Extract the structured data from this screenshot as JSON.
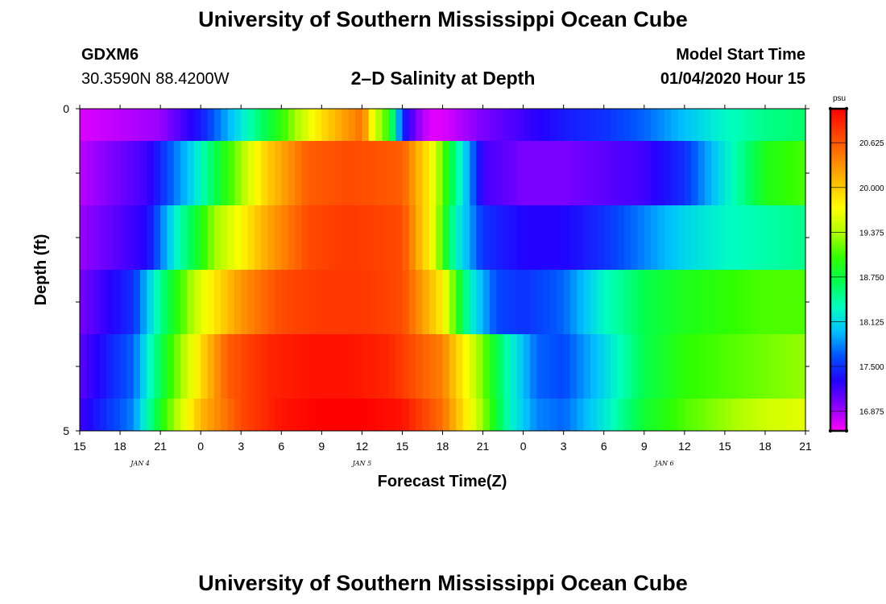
{
  "header": {
    "title": "University of Southern Mississippi Ocean Cube",
    "station_id": "GDXM6",
    "coordinates": "30.3590N 88.4200W",
    "plot_title": "2–D Salinity at Depth",
    "model_start_label": "Model Start Time",
    "model_start_value": "01/04/2020 Hour 15"
  },
  "footer": {
    "title": "University of Southern Mississippi Ocean Cube"
  },
  "chart_data": {
    "type": "heatmap",
    "title": "2–D Salinity at Depth",
    "xlabel": "Forecast Time(Z)",
    "ylabel": "Depth (ft)",
    "x_tick_labels": [
      "15",
      "18",
      "21",
      "0",
      "3",
      "6",
      "9",
      "12",
      "15",
      "18",
      "21",
      "0",
      "3",
      "6",
      "9",
      "12",
      "15",
      "18",
      "21"
    ],
    "x_day_labels": [
      {
        "label": "JAN 4",
        "tick_index": 1.5
      },
      {
        "label": "JAN 5",
        "tick_index": 7
      },
      {
        "label": "JAN 6",
        "tick_index": 14.5
      }
    ],
    "x_range_hours": [
      0,
      54
    ],
    "y_tick_labels": [
      {
        "value": 0,
        "label": "0"
      },
      {
        "value": 1,
        "label": ""
      },
      {
        "value": 2,
        "label": ""
      },
      {
        "value": 3,
        "label": ""
      },
      {
        "value": 4,
        "label": ""
      },
      {
        "value": 5,
        "label": "5"
      }
    ],
    "ylim": [
      0,
      5
    ],
    "row_depths": [
      0,
      1,
      2,
      3,
      4,
      5
    ],
    "colorbar": {
      "unit": "psu",
      "min": 16.6,
      "max": 21.1,
      "ticks": [
        "20.625",
        "20.000",
        "19.375",
        "18.750",
        "18.125",
        "17.500",
        "16.875"
      ],
      "tick_values": [
        20.625,
        20.0,
        19.375,
        18.75,
        18.125,
        17.5,
        16.875
      ],
      "colors": [
        "#ff00ff",
        "#8a00ff",
        "#2400ff",
        "#0050ff",
        "#00c0ff",
        "#00ffc0",
        "#00ff50",
        "#30ff00",
        "#b0ff00",
        "#ffff00",
        "#ffc000",
        "#ff8000",
        "#ff4000",
        "#ff0000"
      ]
    },
    "series": [
      {
        "depth_row": 0,
        "hours": [
          0,
          6,
          9,
          12,
          15,
          18,
          20,
          21,
          22,
          23,
          24,
          25,
          26,
          27,
          28,
          30,
          33,
          36,
          39,
          42,
          45,
          48,
          51,
          54
        ],
        "values": [
          16.7,
          16.9,
          17.4,
          18.2,
          19.0,
          19.9,
          20.3,
          20.5,
          19.5,
          19.0,
          17.5,
          17.0,
          16.7,
          16.7,
          16.8,
          17.0,
          17.2,
          17.4,
          17.5,
          17.7,
          18.0,
          18.3,
          18.5,
          18.6
        ]
      },
      {
        "depth_row": 1,
        "hours": [
          0,
          5,
          8,
          11,
          14,
          17,
          20,
          24,
          26,
          28,
          30,
          33,
          36,
          39,
          42,
          45,
          48,
          51,
          54
        ],
        "values": [
          16.8,
          17.2,
          18.0,
          19.0,
          20.0,
          20.6,
          20.7,
          20.6,
          19.8,
          18.5,
          17.2,
          17.0,
          17.0,
          17.1,
          17.2,
          17.5,
          18.2,
          18.9,
          19.1
        ]
      },
      {
        "depth_row": 2,
        "hours": [
          0,
          5,
          7,
          10,
          14,
          17,
          20,
          24,
          26,
          28,
          30,
          33,
          36,
          39,
          42,
          45,
          48,
          51,
          54
        ],
        "values": [
          16.9,
          17.3,
          18.2,
          19.3,
          20.2,
          20.7,
          20.8,
          20.7,
          19.8,
          18.3,
          17.5,
          17.3,
          17.3,
          17.5,
          17.8,
          18.1,
          18.3,
          18.4,
          18.5
        ]
      },
      {
        "depth_row": 3,
        "hours": [
          0,
          4,
          6,
          9,
          12,
          15,
          18,
          21,
          24,
          27,
          29,
          31,
          33,
          36,
          39,
          42,
          45,
          48,
          51,
          54
        ],
        "values": [
          17.0,
          17.5,
          18.5,
          19.6,
          20.3,
          20.7,
          20.8,
          20.8,
          20.7,
          19.8,
          18.3,
          17.6,
          17.5,
          17.7,
          18.3,
          18.7,
          18.9,
          19.0,
          19.1,
          19.1
        ]
      },
      {
        "depth_row": 4,
        "hours": [
          0,
          4,
          6,
          9,
          11,
          14,
          17,
          20,
          23,
          27,
          30,
          32,
          34,
          36,
          39,
          42,
          45,
          48,
          51,
          54
        ],
        "values": [
          17.1,
          17.7,
          18.7,
          19.9,
          20.6,
          20.9,
          21.0,
          21.0,
          20.9,
          20.4,
          19.2,
          18.3,
          17.7,
          17.6,
          18.1,
          18.7,
          19.0,
          19.1,
          19.2,
          19.3
        ]
      },
      {
        "depth_row": 5,
        "hours": [
          0,
          4,
          6,
          9,
          12,
          15,
          18,
          21,
          24,
          27,
          30,
          32,
          34,
          36,
          39,
          42,
          45,
          48,
          51,
          54
        ],
        "values": [
          17.2,
          17.8,
          18.9,
          20.1,
          20.7,
          21.0,
          21.1,
          21.1,
          21.0,
          20.5,
          19.3,
          18.3,
          17.8,
          17.7,
          18.2,
          18.8,
          19.1,
          19.3,
          19.5,
          19.6
        ]
      }
    ]
  }
}
